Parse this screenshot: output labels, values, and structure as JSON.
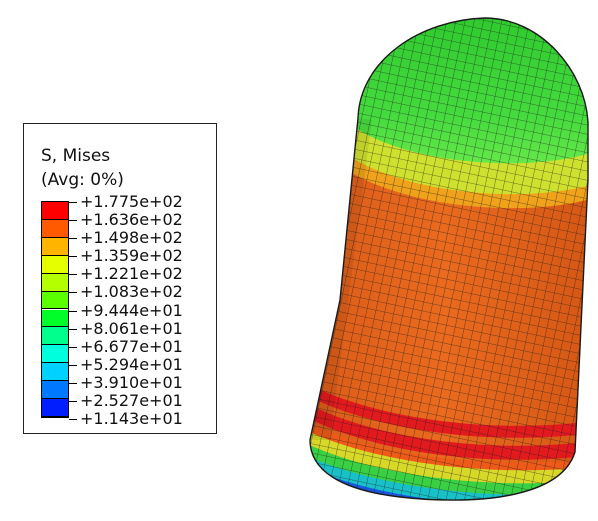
{
  "legend": {
    "title": "S, Mises",
    "subtitle": "(Avg: 0%)",
    "labels": [
      "+1.775e+02",
      "+1.636e+02",
      "+1.498e+02",
      "+1.359e+02",
      "+1.221e+02",
      "+1.083e+02",
      "+9.444e+01",
      "+8.061e+01",
      "+6.677e+01",
      "+5.294e+01",
      "+3.910e+01",
      "+2.527e+01",
      "+1.143e+01"
    ],
    "colors": [
      "#ff0000",
      "#ff5a00",
      "#ffb400",
      "#e6ff00",
      "#b4ff00",
      "#5aff00",
      "#00ff28",
      "#00ff8c",
      "#00ffdc",
      "#00d2ff",
      "#0078ff",
      "#001eff"
    ]
  },
  "model": {
    "colors": {
      "cap_green": "#35d235",
      "cap_light": "#7ff05a",
      "band_yellow": "#d8e830",
      "body_orange": "#e8661c",
      "band_red": "#e4141e",
      "base_green": "#3ad043",
      "base_cyan": "#18c8c8",
      "base_blue": "#1858e0",
      "mesh": "#1a1a1a"
    }
  }
}
